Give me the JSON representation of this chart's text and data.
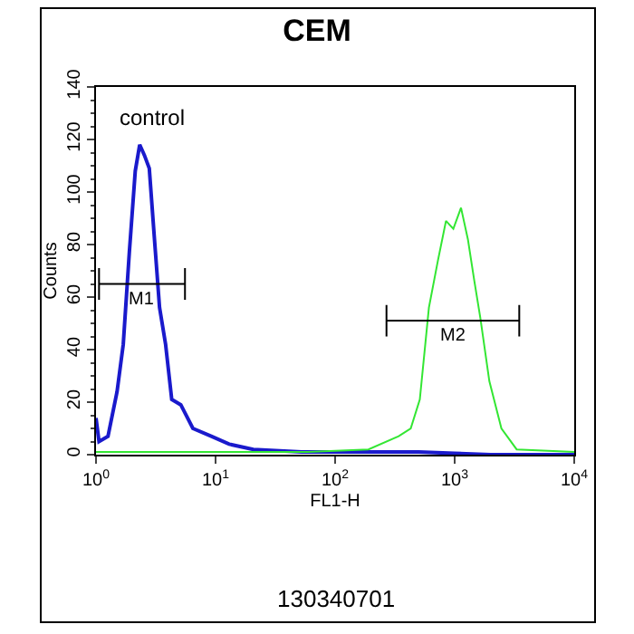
{
  "chart_data": {
    "type": "line",
    "title": "CEM",
    "xlabel": "FL1-H",
    "ylabel": "Counts",
    "log": "x",
    "xlim": [
      1,
      10000
    ],
    "xticks": [
      {
        "value": 1,
        "label": "10$^{0}$"
      },
      {
        "value": 10,
        "label": "10$^{1}$"
      },
      {
        "value": 100,
        "label": "10$^{2}$"
      },
      {
        "value": 1000,
        "label": "10$^{3}$"
      },
      {
        "value": 10000,
        "label": "10$^{4}$"
      }
    ],
    "ylim": [
      0,
      140
    ],
    "yticks": [
      0,
      20,
      40,
      60,
      80,
      100,
      120,
      140
    ],
    "grid": false,
    "legend": false,
    "series": [
      {
        "name": "control",
        "color": "#1a1acc",
        "x": [
          1,
          1.06,
          1.26,
          1.5,
          1.69,
          1.9,
          2.13,
          2.32,
          2.54,
          2.79,
          3.06,
          3.4,
          3.82,
          4.3,
          5.12,
          6.46,
          9.2,
          13,
          20.7,
          52.6,
          80,
          150,
          500,
          1000,
          2000,
          10000
        ],
        "values": [
          14,
          5,
          7,
          24,
          42,
          77,
          108,
          118,
          114,
          109,
          84,
          56,
          42,
          21,
          19,
          10,
          7,
          4,
          2,
          1,
          1,
          1,
          1,
          0.5,
          0,
          0
        ]
      },
      {
        "color": "#33e633",
        "x": [
          1,
          10,
          59,
          190,
          340,
          429,
          511,
          609,
          725,
          846,
          975,
          1130,
          1290,
          1462,
          1640,
          1950,
          2460,
          3300,
          10000
        ],
        "values": [
          1,
          1,
          1,
          2,
          7,
          10,
          21,
          56,
          74,
          89,
          86,
          94,
          82,
          66,
          52,
          28,
          10,
          2,
          1
        ]
      },
      {
        "name": "M1",
        "color": "#000000",
        "x": [
          1.06,
          1.06,
          1.06,
          5.55,
          5.55,
          5.55
        ],
        "values": [
          59,
          71,
          65,
          65,
          59,
          71
        ]
      },
      {
        "name": "M2",
        "color": "#000000",
        "x": [
          269,
          269,
          269,
          3470,
          3470,
          3470
        ],
        "values": [
          45,
          57,
          51,
          51,
          45,
          57
        ]
      }
    ],
    "annotations": [
      "130340701"
    ]
  }
}
